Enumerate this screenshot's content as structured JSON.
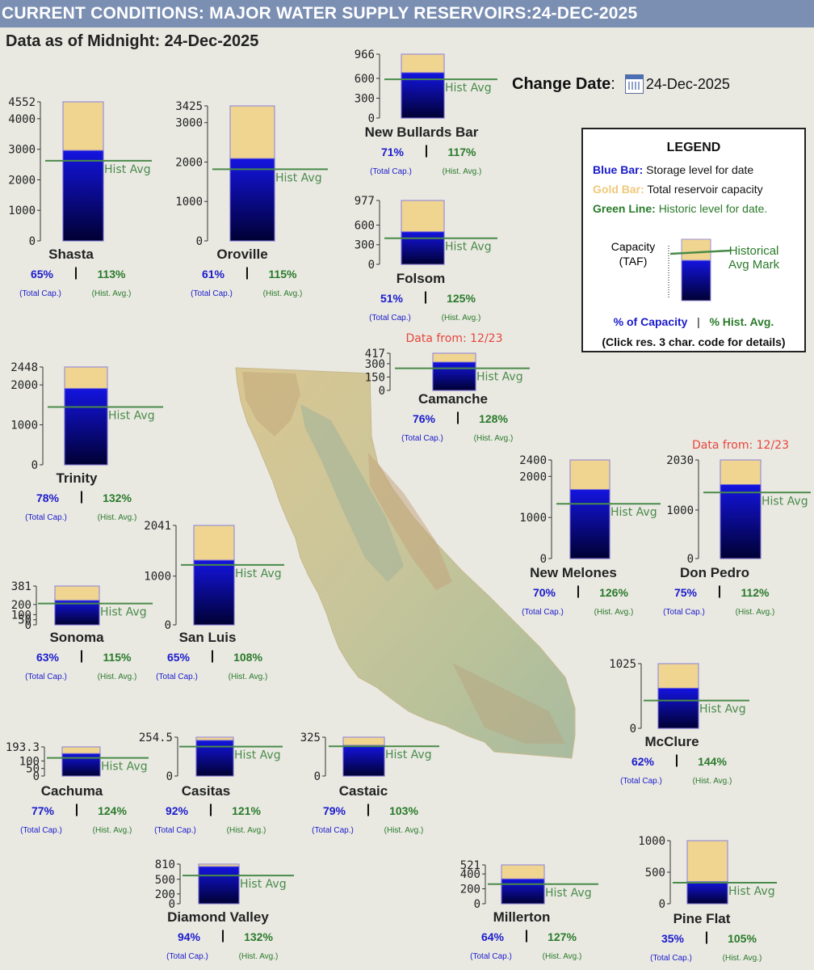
{
  "header": {
    "title": "CURRENT CONDITIONS: MAJOR WATER SUPPLY RESERVOIRS:24-DEC-2025"
  },
  "subtitle": "Data as of Midnight: 24-Dec-2025",
  "change_date": {
    "label": "Change Date",
    "value": "24-Dec-2025",
    "icon": "calendar-icon"
  },
  "legend": {
    "title": "LEGEND",
    "blue_label": "Blue Bar:",
    "blue_text": "Storage level for date",
    "gold_label": "Gold Bar:",
    "gold_text": "Total reservoir capacity",
    "green_label": "Green Line:",
    "green_text": "Historic level for date.",
    "capacity_label": "Capacity",
    "capacity_unit": "(TAF)",
    "hist_mark_label": "Historical",
    "hist_mark_label2": "Avg Mark",
    "pct_capacity": "% of Capacity",
    "separator": "|",
    "pct_hist": "% Hist. Avg.",
    "note": "(Click res. 3 char. code for details)"
  },
  "colors": {
    "header": "#7b8fb3",
    "capacity": "#f0d590",
    "storage_top": "#1414e0",
    "storage_bottom": "#000033",
    "hist_line": "#4a8a4a",
    "cap_pct": "#1a1acc",
    "hist_pct": "#2a7a2a",
    "note": "#e8453c"
  },
  "labels": {
    "hist_avg": "Hist Avg",
    "total_cap": "(Total Cap.)",
    "hist_avg_small": "(Hist. Avg.)",
    "separator": "|"
  },
  "chart_data": [
    {
      "type": "bar",
      "name": "Shasta",
      "capacity": 4552,
      "ticks": [
        "4552",
        "4000",
        "3000",
        "2000",
        "1000",
        "0"
      ],
      "storage": 2959,
      "hist_avg": 2625,
      "pct_capacity": "65%",
      "pct_hist_avg": "113%"
    },
    {
      "type": "bar",
      "name": "Oroville",
      "capacity": 3425,
      "ticks": [
        "3425",
        "3000",
        "2000",
        "1000",
        "0"
      ],
      "storage": 2089,
      "hist_avg": 1818,
      "pct_capacity": "61%",
      "pct_hist_avg": "115%"
    },
    {
      "type": "bar",
      "name": "New Bullards Bar",
      "capacity": 966,
      "ticks": [
        "966",
        "600",
        "300",
        "0"
      ],
      "storage": 686,
      "hist_avg": 586,
      "pct_capacity": "71%",
      "pct_hist_avg": "117%"
    },
    {
      "type": "bar",
      "name": "Folsom",
      "capacity": 977,
      "ticks": [
        "977",
        "600",
        "300",
        "0"
      ],
      "storage": 498,
      "hist_avg": 399,
      "pct_capacity": "51%",
      "pct_hist_avg": "125%"
    },
    {
      "type": "bar",
      "name": "Trinity",
      "capacity": 2448,
      "ticks": [
        "2448",
        "2000",
        "1000",
        "0"
      ],
      "storage": 1909,
      "hist_avg": 1446,
      "pct_capacity": "78%",
      "pct_hist_avg": "132%"
    },
    {
      "type": "bar",
      "name": "Camanche",
      "note": "Data from:  12/23",
      "capacity": 417,
      "ticks": [
        "417",
        "300",
        "150",
        "0"
      ],
      "storage": 317,
      "hist_avg": 248,
      "pct_capacity": "76%",
      "pct_hist_avg": "128%"
    },
    {
      "type": "bar",
      "name": "New Melones",
      "capacity": 2400,
      "ticks": [
        "2400",
        "2000",
        "1000",
        "0"
      ],
      "storage": 1680,
      "hist_avg": 1333,
      "pct_capacity": "70%",
      "pct_hist_avg": "126%"
    },
    {
      "type": "bar",
      "name": "Don Pedro",
      "note": "Data from:  12/23",
      "capacity": 2030,
      "ticks": [
        "2030",
        "1000",
        "0"
      ],
      "storage": 1523,
      "hist_avg": 1360,
      "pct_capacity": "75%",
      "pct_hist_avg": "112%"
    },
    {
      "type": "bar",
      "name": "Sonoma",
      "capacity": 381,
      "ticks": [
        "381",
        "200",
        "100",
        "50",
        "0"
      ],
      "storage": 240,
      "hist_avg": 209,
      "pct_capacity": "63%",
      "pct_hist_avg": "115%"
    },
    {
      "type": "bar",
      "name": "San Luis",
      "capacity": 2041,
      "ticks": [
        "2041",
        "1000",
        "0"
      ],
      "storage": 1327,
      "hist_avg": 1229,
      "pct_capacity": "65%",
      "pct_hist_avg": "108%"
    },
    {
      "type": "bar",
      "name": "McClure",
      "capacity": 1025,
      "ticks": [
        "1025",
        "0"
      ],
      "storage": 636,
      "hist_avg": 441,
      "pct_capacity": "62%",
      "pct_hist_avg": "144%"
    },
    {
      "type": "bar",
      "name": "Cachuma",
      "capacity": 193.3,
      "ticks": [
        "193.3",
        "100",
        "50",
        "0"
      ],
      "storage": 149,
      "hist_avg": 120,
      "pct_capacity": "77%",
      "pct_hist_avg": "124%"
    },
    {
      "type": "bar",
      "name": "Casitas",
      "capacity": 254.5,
      "ticks": [
        "254.5",
        "0"
      ],
      "storage": 234,
      "hist_avg": 193,
      "pct_capacity": "92%",
      "pct_hist_avg": "121%"
    },
    {
      "type": "bar",
      "name": "Castaic",
      "capacity": 325,
      "ticks": [
        "325",
        "0"
      ],
      "storage": 257,
      "hist_avg": 249,
      "pct_capacity": "79%",
      "pct_hist_avg": "103%"
    },
    {
      "type": "bar",
      "name": "Diamond Valley",
      "capacity": 810,
      "ticks": [
        "810",
        "500",
        "200",
        "0"
      ],
      "storage": 761,
      "hist_avg": 577,
      "pct_capacity": "94%",
      "pct_hist_avg": "132%"
    },
    {
      "type": "bar",
      "name": "Millerton",
      "capacity": 521,
      "ticks": [
        "521",
        "400",
        "200",
        "0"
      ],
      "storage": 333,
      "hist_avg": 263,
      "pct_capacity": "64%",
      "pct_hist_avg": "127%"
    },
    {
      "type": "bar",
      "name": "Pine Flat",
      "capacity": 1000,
      "ticks": [
        "1000",
        "500",
        "0"
      ],
      "storage": 350,
      "hist_avg": 333,
      "pct_capacity": "35%",
      "pct_hist_avg": "105%"
    }
  ]
}
